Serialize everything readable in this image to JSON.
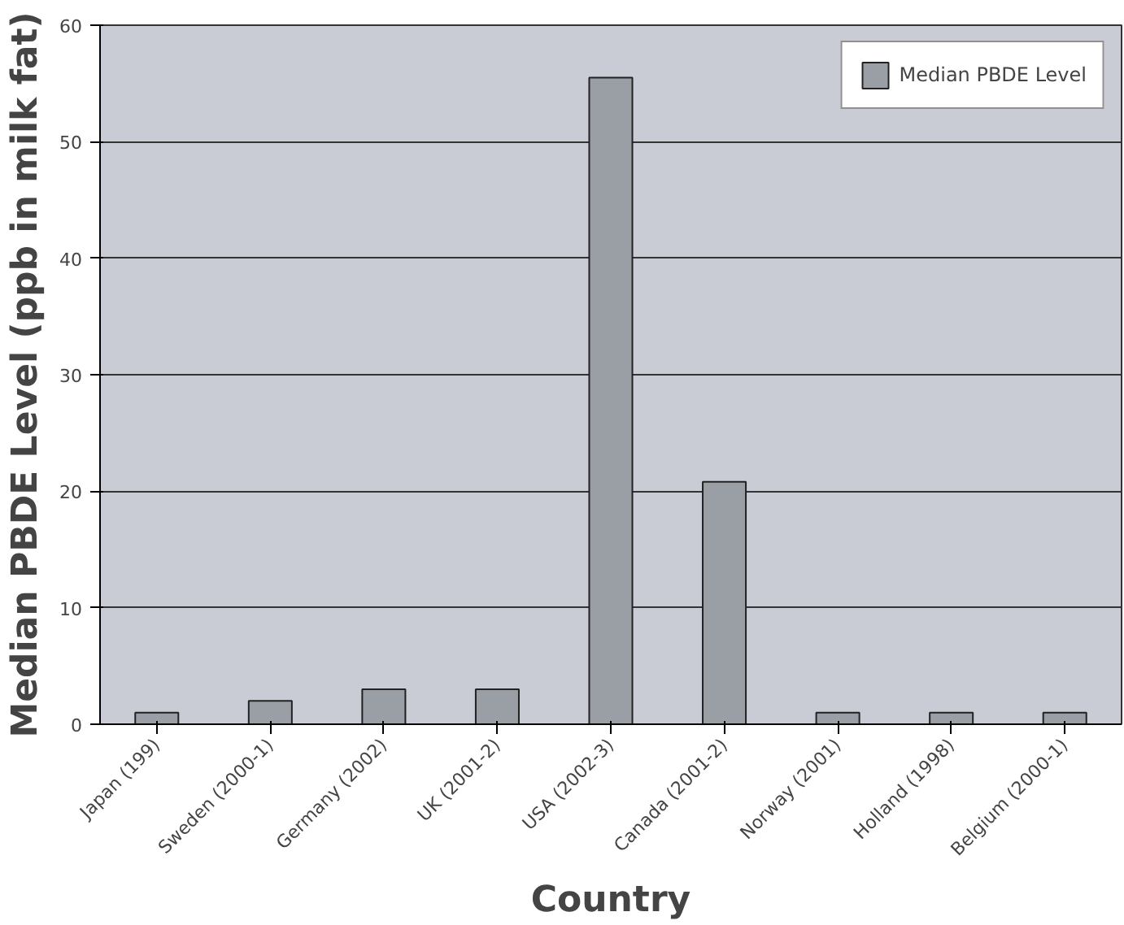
{
  "chart_data": {
    "type": "bar",
    "xlabel": "Country",
    "ylabel": "Median PBDE Level (ppb in milk fat)",
    "categories": [
      "Japan (199)",
      "Sweden (2000-1)",
      "Germany (2002)",
      "UK (2001-2)",
      "USA (2002-3)",
      "Canada (2001-2)",
      "Norway (2001)",
      "Holland (1998)",
      "Belgium (2000-1)"
    ],
    "series": [
      {
        "name": "Median PBDE Level",
        "color": "#9a9fa5",
        "values": [
          1,
          2,
          3,
          3,
          55.5,
          20.8,
          1,
          1,
          1
        ]
      }
    ],
    "ylim": [
      0,
      60
    ],
    "yticks": [
      0,
      10,
      20,
      30,
      40,
      50,
      60
    ],
    "grid": "y",
    "legend": "top right"
  }
}
